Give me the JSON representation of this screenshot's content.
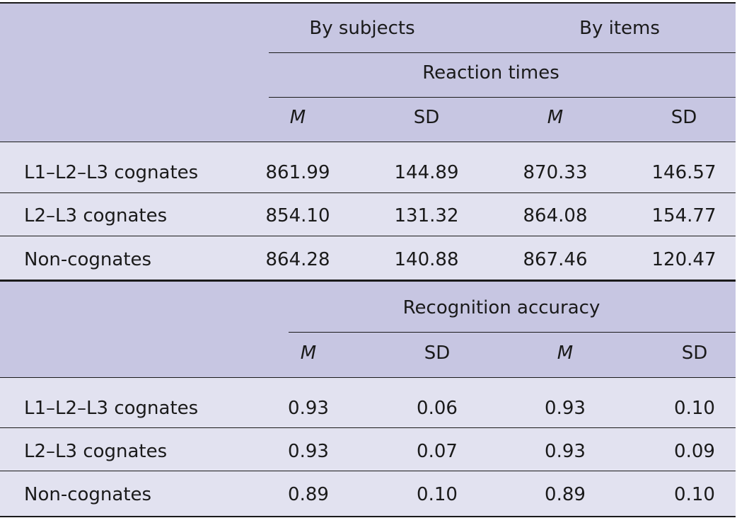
{
  "column_groups": {
    "by_subjects": "By subjects",
    "by_items": "By items"
  },
  "sections": [
    {
      "title": "Reaction times",
      "headers": [
        "M",
        "SD",
        "M",
        "SD"
      ],
      "rows": [
        {
          "label": "L1–L2–L3 cognates",
          "values": [
            "861.99",
            "144.89",
            "870.33",
            "146.57"
          ]
        },
        {
          "label": "L2–L3 cognates",
          "values": [
            "854.10",
            "131.32",
            "864.08",
            "154.77"
          ]
        },
        {
          "label": "Non-cognates",
          "values": [
            "864.28",
            "140.88",
            "867.46",
            "120.47"
          ]
        }
      ]
    },
    {
      "title": "Recognition accuracy",
      "headers": [
        "M",
        "SD",
        "M",
        "SD"
      ],
      "rows": [
        {
          "label": "L1–L2–L3 cognates",
          "values": [
            "0.93",
            "0.06",
            "0.93",
            "0.10"
          ]
        },
        {
          "label": "L2–L3 cognates",
          "values": [
            "0.93",
            "0.07",
            "0.93",
            "0.09"
          ]
        },
        {
          "label": "Non-cognates",
          "values": [
            "0.89",
            "0.10",
            "0.89",
            "0.10"
          ]
        }
      ]
    }
  ]
}
